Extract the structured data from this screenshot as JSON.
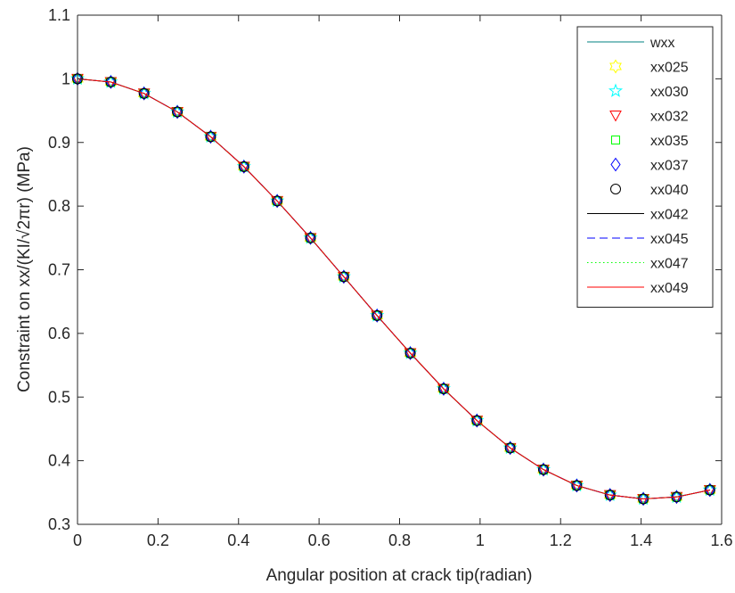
{
  "chart_data": {
    "type": "line",
    "xlabel": "Angular position at crack tip(radian)",
    "ylabel": "Constraint on xx/(KI/√2πr) (MPa)",
    "xlim": [
      0,
      1.6
    ],
    "ylim": [
      0.3,
      1.1
    ],
    "xticks": [
      "0",
      "0.2",
      "0.4",
      "0.6",
      "0.8",
      "1",
      "1.2",
      "1.4",
      "1.6"
    ],
    "yticks": [
      "0.3",
      "0.4",
      "0.5",
      "0.6",
      "0.7",
      "0.8",
      "0.9",
      "1",
      "1.1"
    ],
    "grid": false,
    "legend_position": "top-right",
    "x": [
      0,
      0.0827,
      0.1653,
      0.248,
      0.3307,
      0.4134,
      0.496,
      0.5787,
      0.6614,
      0.7441,
      0.8267,
      0.9094,
      0.9921,
      1.0748,
      1.1574,
      1.2401,
      1.3228,
      1.4054,
      1.4881,
      1.5708
    ],
    "y": [
      1.0,
      0.995,
      0.977,
      0.948,
      0.909,
      0.862,
      0.808,
      0.75,
      0.689,
      0.628,
      0.569,
      0.513,
      0.463,
      0.42,
      0.386,
      0.361,
      0.346,
      0.34,
      0.343,
      0.354
    ],
    "series": [
      {
        "name": "wxx",
        "style": "line",
        "color": "#008080"
      },
      {
        "name": "xx025",
        "style": "marker",
        "marker": "hexagram",
        "color": "#ffff00"
      },
      {
        "name": "xx030",
        "style": "marker",
        "marker": "pentagram",
        "color": "#00ffff"
      },
      {
        "name": "xx032",
        "style": "marker",
        "marker": "triangle-down",
        "color": "#ff0000"
      },
      {
        "name": "xx035",
        "style": "marker",
        "marker": "square",
        "color": "#00ff00"
      },
      {
        "name": "xx037",
        "style": "marker",
        "marker": "diamond",
        "color": "#0000ff"
      },
      {
        "name": "xx040",
        "style": "marker",
        "marker": "circle",
        "color": "#000000"
      },
      {
        "name": "xx042",
        "style": "line",
        "dash": "solid",
        "color": "#000000"
      },
      {
        "name": "xx045",
        "style": "line",
        "dash": "dashed",
        "color": "#0000ff"
      },
      {
        "name": "xx047",
        "style": "line",
        "dash": "dotted",
        "color": "#00ff00"
      },
      {
        "name": "xx049",
        "style": "line",
        "dash": "solid",
        "color": "#ff0000"
      }
    ]
  }
}
